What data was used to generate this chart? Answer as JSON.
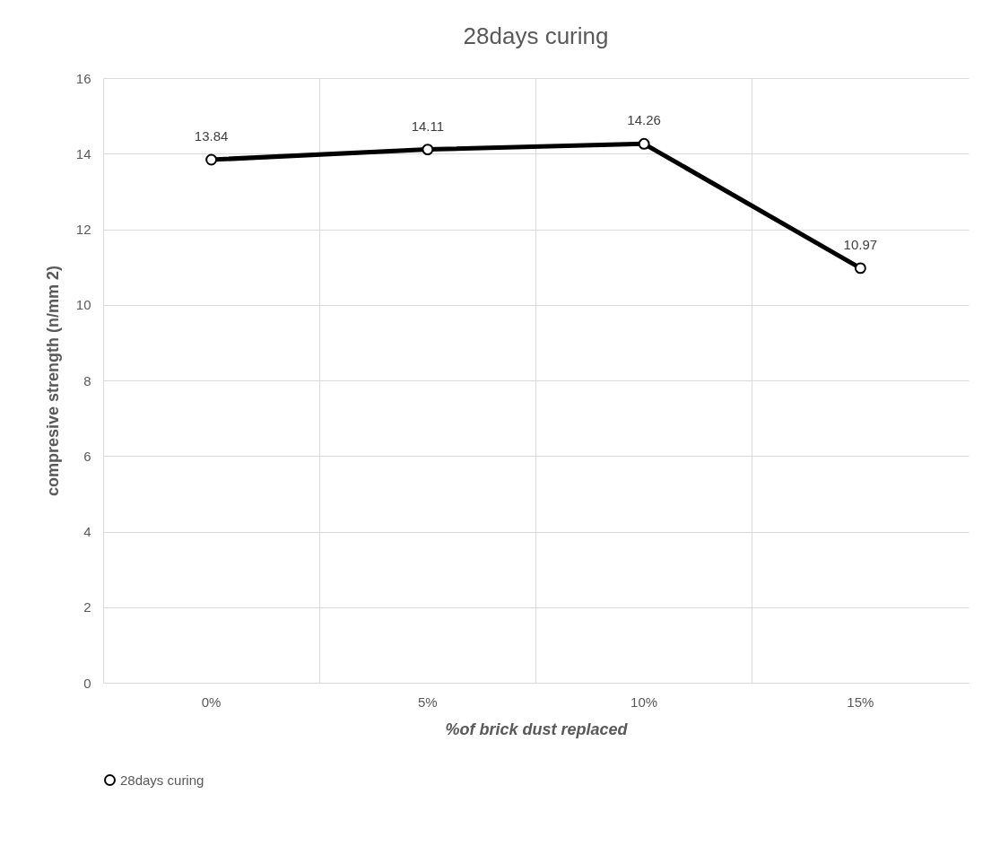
{
  "chart_data": {
    "type": "line",
    "title": "28days curing",
    "xlabel": "%of brick dust replaced",
    "ylabel": "compresive strength (n/mm 2)",
    "categories": [
      "0%",
      "5%",
      "10%",
      "15%"
    ],
    "series": [
      {
        "name": "28days curing",
        "color": "#000000",
        "values": [
          13.84,
          14.11,
          14.26,
          10.97
        ]
      }
    ],
    "ylim": [
      0,
      16
    ],
    "yticks": [
      0,
      2,
      4,
      6,
      8,
      10,
      12,
      14,
      16
    ],
    "grid": true,
    "legend": "bottom",
    "marker": "circle",
    "line_style": "solid",
    "data_labels": true
  }
}
